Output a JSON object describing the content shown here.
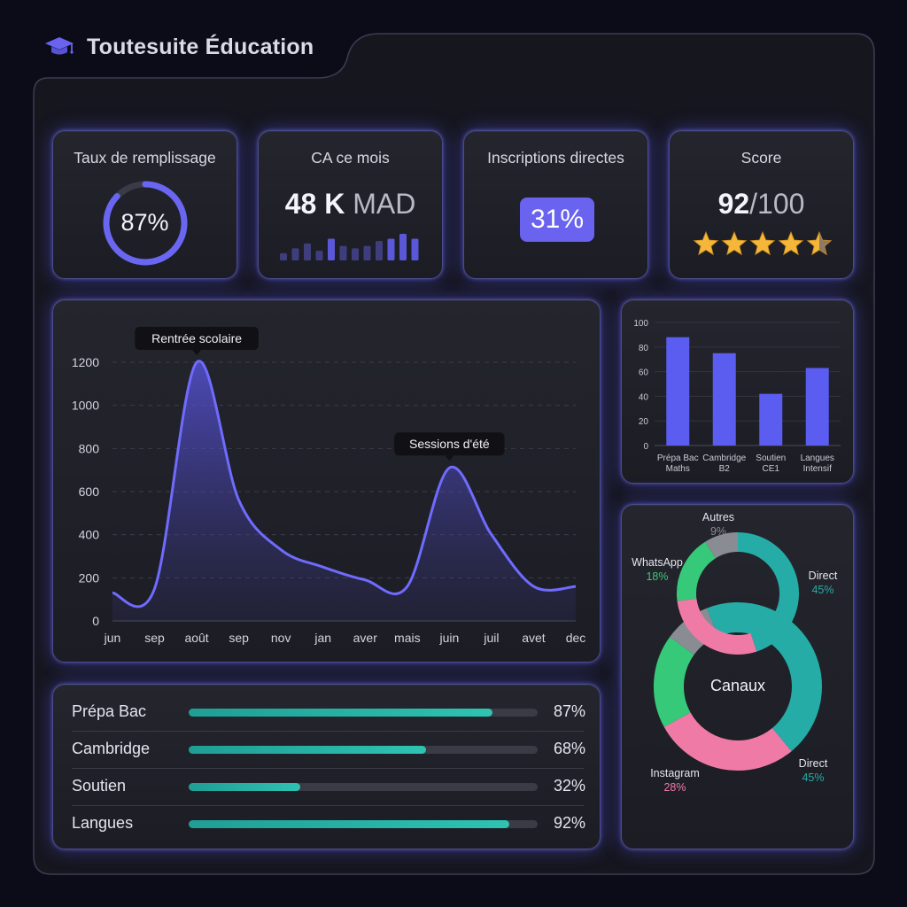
{
  "brand": {
    "name": "Toutesuite Éducation",
    "icon": "graduation-cap-icon",
    "accent": "#6a63f0"
  },
  "kpis": {
    "fill_rate": {
      "title": "Taux de remplissage",
      "value": "87%",
      "fraction": 0.87
    },
    "revenue": {
      "title": "CA ce mois",
      "value": "48 K",
      "unit": "MAD",
      "trend": [
        3,
        5,
        7,
        4,
        9,
        6,
        5,
        6,
        8,
        9,
        11,
        9
      ]
    },
    "direct": {
      "title": "Inscriptions directes",
      "value": "31%"
    },
    "score": {
      "title": "Score",
      "value": "92",
      "max": "/100",
      "stars": 4.5
    }
  },
  "chart_data": [
    {
      "type": "area",
      "x": [
        "jun",
        "sep",
        "août",
        "sep",
        "nov",
        "jan",
        "aver",
        "mais",
        "juin",
        "juil",
        "avet",
        "dec"
      ],
      "y": [
        130,
        150,
        1200,
        560,
        330,
        250,
        190,
        160,
        710,
        400,
        160,
        160
      ],
      "ylim": [
        0,
        1200
      ],
      "yticks": [
        0,
        200,
        400,
        600,
        800,
        1000,
        1200
      ],
      "annotations": [
        {
          "label": "Rentrée scolaire",
          "x": "août",
          "y": 1200
        },
        {
          "label": "Sessions d'été",
          "x": "juin",
          "y": 710
        }
      ],
      "grid": true,
      "color": "#6f6bff"
    },
    {
      "type": "bar",
      "categories": [
        [
          "Prépa Bac",
          "Maths"
        ],
        [
          "Cambridge",
          "B2"
        ],
        [
          "Soutien",
          "CE1"
        ],
        [
          "Langues",
          "Intensif"
        ]
      ],
      "values": [
        88,
        75,
        42,
        63
      ],
      "ylim": [
        0,
        100
      ],
      "yticks": [
        0,
        20,
        40,
        60,
        80,
        100
      ],
      "color": "#5b5cf0"
    },
    {
      "type": "pie",
      "title": "Canaux",
      "slices": [
        {
          "name": "Direct",
          "value": 45,
          "label": "45%",
          "color": "#26aca6"
        },
        {
          "name": "Instagram",
          "value": 28,
          "label": "28%",
          "color": "#f07aa6"
        },
        {
          "name": "WhatsApp",
          "value": 18,
          "label": "18%",
          "color": "#37c97a"
        },
        {
          "name": "Autres",
          "value": 9,
          "label": "9%",
          "color": "#8a8c94"
        }
      ]
    }
  ],
  "progress": [
    {
      "label": "Prépa Bac",
      "pct": "87%",
      "value": 0.87
    },
    {
      "label": "Cambridge",
      "pct": "68%",
      "value": 0.68
    },
    {
      "label": "Soutien",
      "pct": "32%",
      "value": 0.32
    },
    {
      "label": "Langues",
      "pct": "92%",
      "value": 0.92
    }
  ]
}
